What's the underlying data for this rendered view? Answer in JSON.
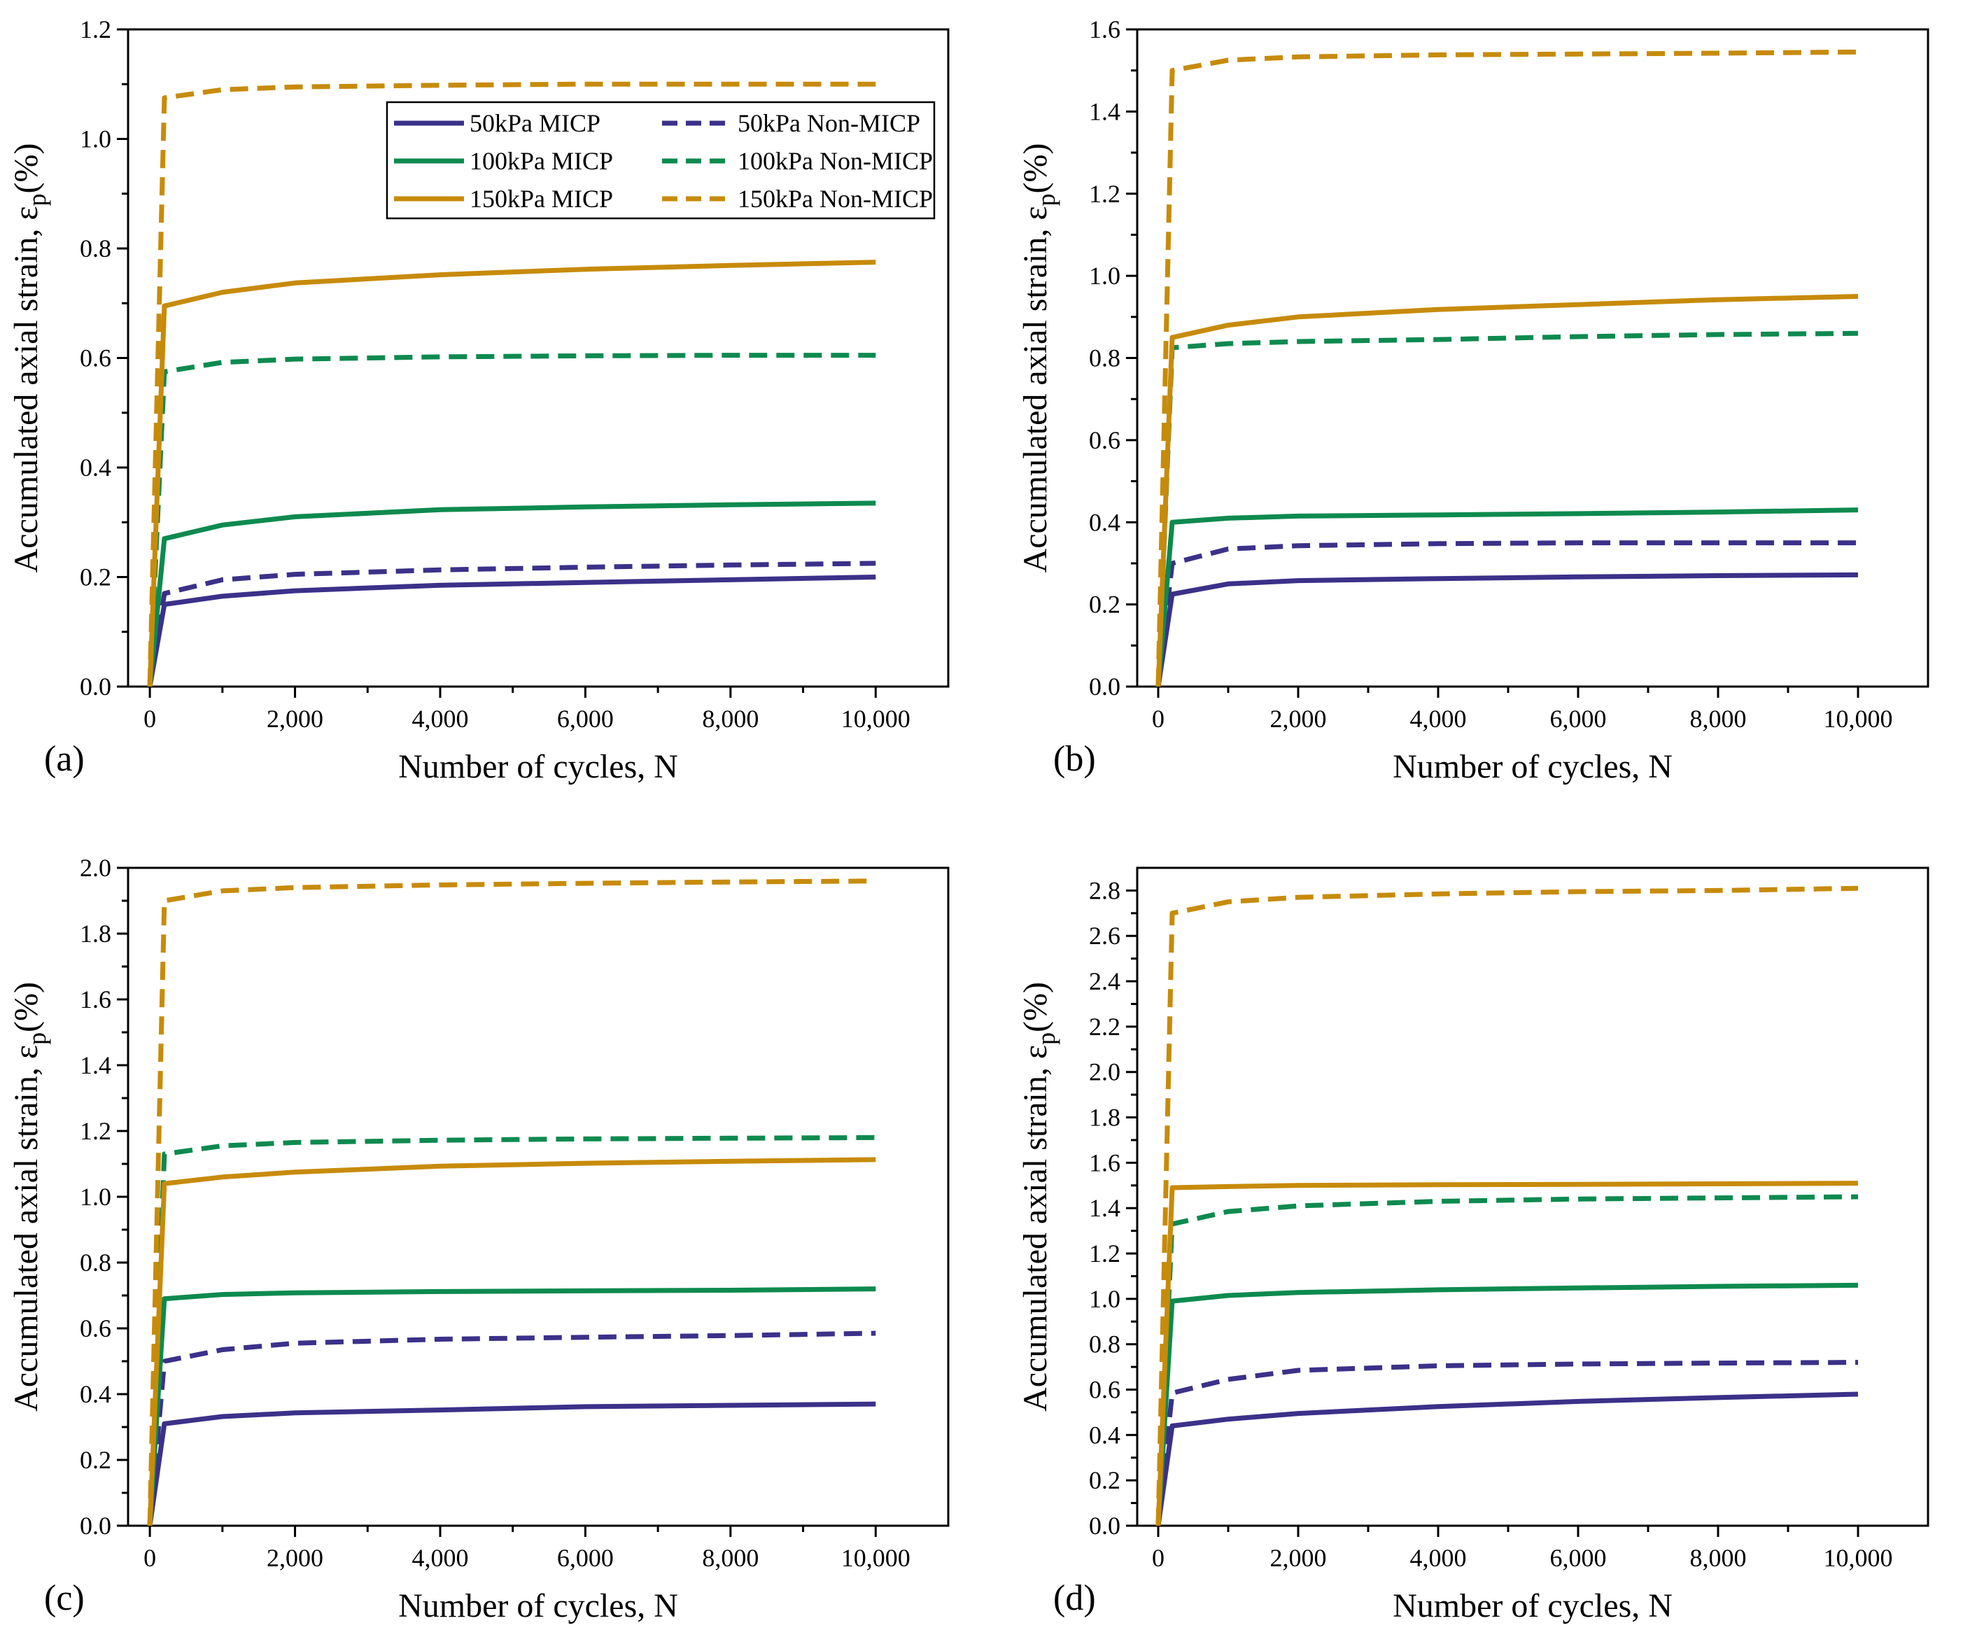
{
  "chart_data": [
    {
      "type": "line",
      "panel_label": "(a)",
      "xlabel": "Number of cycles, N",
      "ylabel": "Accumulated axial strain, ε",
      "ylabel_sub": "p",
      "ylabel_suffix": "(%)",
      "xlim": [
        -300,
        11000
      ],
      "ylim": [
        0,
        1.2
      ],
      "xticks": [
        0,
        2000,
        4000,
        6000,
        8000,
        10000
      ],
      "xtick_labels": [
        "0",
        "2,000",
        "4,000",
        "6,000",
        "8,000",
        "10,000"
      ],
      "yticks": [
        0,
        0.2,
        0.4,
        0.6,
        0.8,
        1.0,
        1.2
      ],
      "ytick_labels": [
        "0.0",
        "0.2",
        "0.4",
        "0.6",
        "0.8",
        "1.0",
        "1.2"
      ],
      "legend": "top-right",
      "series": [
        {
          "name": "50kPa MICP",
          "color": "#3b3189",
          "dash": "solid",
          "x": [
            0,
            200,
            1000,
            2000,
            4000,
            6000,
            8000,
            10000
          ],
          "values": [
            0,
            0.15,
            0.165,
            0.175,
            0.185,
            0.19,
            0.195,
            0.2
          ]
        },
        {
          "name": "50kPa Non-MICP",
          "color": "#3b3189",
          "dash": "dashed",
          "x": [
            0,
            200,
            1000,
            2000,
            4000,
            6000,
            8000,
            10000
          ],
          "values": [
            0,
            0.17,
            0.195,
            0.205,
            0.213,
            0.218,
            0.222,
            0.225
          ]
        },
        {
          "name": "100kPa MICP",
          "color": "#0d8a4f",
          "dash": "solid",
          "x": [
            0,
            200,
            1000,
            2000,
            4000,
            6000,
            8000,
            10000
          ],
          "values": [
            0,
            0.27,
            0.295,
            0.31,
            0.323,
            0.328,
            0.332,
            0.335
          ]
        },
        {
          "name": "100kPa Non-MICP",
          "color": "#0d8a4f",
          "dash": "dashed",
          "x": [
            0,
            200,
            1000,
            2000,
            4000,
            6000,
            8000,
            10000
          ],
          "values": [
            0,
            0.575,
            0.592,
            0.598,
            0.602,
            0.604,
            0.605,
            0.605
          ]
        },
        {
          "name": "150kPa MICP",
          "color": "#c78b0a",
          "dash": "solid",
          "x": [
            0,
            200,
            1000,
            2000,
            4000,
            6000,
            8000,
            10000
          ],
          "values": [
            0,
            0.695,
            0.72,
            0.737,
            0.752,
            0.762,
            0.769,
            0.775
          ]
        },
        {
          "name": "150kPa Non-MICP",
          "color": "#c78b0a",
          "dash": "dashed",
          "x": [
            0,
            200,
            1000,
            2000,
            4000,
            6000,
            8000,
            10000
          ],
          "values": [
            0,
            1.075,
            1.09,
            1.095,
            1.098,
            1.1,
            1.1,
            1.1
          ]
        }
      ]
    },
    {
      "type": "line",
      "panel_label": "(b)",
      "xlabel": "Number of cycles, N",
      "ylabel": "Accumulated axial strain, ε",
      "ylabel_sub": "p",
      "ylabel_suffix": "(%)",
      "xlim": [
        -300,
        11000
      ],
      "ylim": [
        0,
        1.6
      ],
      "xticks": [
        0,
        2000,
        4000,
        6000,
        8000,
        10000
      ],
      "xtick_labels": [
        "0",
        "2,000",
        "4,000",
        "6,000",
        "8,000",
        "10,000"
      ],
      "yticks": [
        0,
        0.2,
        0.4,
        0.6,
        0.8,
        1.0,
        1.2,
        1.4,
        1.6
      ],
      "ytick_labels": [
        "0.0",
        "0.2",
        "0.4",
        "0.6",
        "0.8",
        "1.0",
        "1.2",
        "1.4",
        "1.6"
      ],
      "series": [
        {
          "name": "50kPa MICP",
          "color": "#3b3189",
          "dash": "solid",
          "x": [
            0,
            200,
            1000,
            2000,
            4000,
            6000,
            8000,
            10000
          ],
          "values": [
            0,
            0.225,
            0.25,
            0.258,
            0.263,
            0.267,
            0.27,
            0.272
          ]
        },
        {
          "name": "50kPa Non-MICP",
          "color": "#3b3189",
          "dash": "dashed",
          "x": [
            0,
            200,
            1000,
            2000,
            4000,
            6000,
            8000,
            10000
          ],
          "values": [
            0,
            0.3,
            0.335,
            0.343,
            0.348,
            0.35,
            0.35,
            0.35
          ]
        },
        {
          "name": "100kPa MICP",
          "color": "#0d8a4f",
          "dash": "solid",
          "x": [
            0,
            200,
            1000,
            2000,
            4000,
            6000,
            8000,
            10000
          ],
          "values": [
            0,
            0.4,
            0.41,
            0.415,
            0.418,
            0.421,
            0.425,
            0.43
          ]
        },
        {
          "name": "100kPa Non-MICP",
          "color": "#0d8a4f",
          "dash": "dashed",
          "x": [
            0,
            200,
            1000,
            2000,
            4000,
            6000,
            8000,
            10000
          ],
          "values": [
            0,
            0.825,
            0.835,
            0.84,
            0.845,
            0.852,
            0.857,
            0.86
          ]
        },
        {
          "name": "150kPa MICP",
          "color": "#c78b0a",
          "dash": "solid",
          "x": [
            0,
            200,
            1000,
            2000,
            4000,
            6000,
            8000,
            10000
          ],
          "values": [
            0,
            0.85,
            0.88,
            0.9,
            0.918,
            0.93,
            0.942,
            0.95
          ]
        },
        {
          "name": "150kPa Non-MICP",
          "color": "#c78b0a",
          "dash": "dashed",
          "x": [
            0,
            200,
            1000,
            2000,
            4000,
            6000,
            8000,
            10000
          ],
          "values": [
            0,
            1.5,
            1.525,
            1.533,
            1.538,
            1.54,
            1.542,
            1.545
          ]
        }
      ]
    },
    {
      "type": "line",
      "panel_label": "(c)",
      "xlabel": "Number of cycles, N",
      "ylabel": "Accumulated axial strain, ε",
      "ylabel_sub": "p",
      "ylabel_suffix": "(%)",
      "xlim": [
        -300,
        11000
      ],
      "ylim": [
        0,
        2.0
      ],
      "xticks": [
        0,
        2000,
        4000,
        6000,
        8000,
        10000
      ],
      "xtick_labels": [
        "0",
        "2,000",
        "4,000",
        "6,000",
        "8,000",
        "10,000"
      ],
      "yticks": [
        0,
        0.2,
        0.4,
        0.6,
        0.8,
        1.0,
        1.2,
        1.4,
        1.6,
        1.8,
        2.0
      ],
      "ytick_labels": [
        "0.0",
        "0.2",
        "0.4",
        "0.6",
        "0.8",
        "1.0",
        "1.2",
        "1.4",
        "1.6",
        "1.8",
        "2.0"
      ],
      "series": [
        {
          "name": "50kPa MICP",
          "color": "#3b3189",
          "dash": "solid",
          "x": [
            0,
            200,
            1000,
            2000,
            4000,
            6000,
            8000,
            10000
          ],
          "values": [
            0,
            0.31,
            0.332,
            0.343,
            0.352,
            0.362,
            0.366,
            0.37
          ]
        },
        {
          "name": "50kPa Non-MICP",
          "color": "#3b3189",
          "dash": "dashed",
          "x": [
            0,
            200,
            1000,
            2000,
            4000,
            6000,
            8000,
            10000
          ],
          "values": [
            0,
            0.5,
            0.535,
            0.555,
            0.567,
            0.573,
            0.578,
            0.585
          ]
        },
        {
          "name": "100kPa MICP",
          "color": "#0d8a4f",
          "dash": "solid",
          "x": [
            0,
            200,
            1000,
            2000,
            4000,
            6000,
            8000,
            10000
          ],
          "values": [
            0,
            0.69,
            0.703,
            0.708,
            0.712,
            0.714,
            0.716,
            0.72
          ]
        },
        {
          "name": "100kPa Non-MICP",
          "color": "#0d8a4f",
          "dash": "dashed",
          "x": [
            0,
            200,
            1000,
            2000,
            4000,
            6000,
            8000,
            10000
          ],
          "values": [
            0,
            1.13,
            1.155,
            1.165,
            1.172,
            1.176,
            1.178,
            1.18
          ]
        },
        {
          "name": "150kPa MICP",
          "color": "#c78b0a",
          "dash": "solid",
          "x": [
            0,
            200,
            1000,
            2000,
            4000,
            6000,
            8000,
            10000
          ],
          "values": [
            0,
            1.04,
            1.06,
            1.075,
            1.093,
            1.102,
            1.108,
            1.113
          ]
        },
        {
          "name": "150kPa Non-MICP",
          "color": "#c78b0a",
          "dash": "dashed",
          "x": [
            0,
            200,
            1000,
            2000,
            4000,
            6000,
            8000,
            10000
          ],
          "values": [
            0,
            1.9,
            1.93,
            1.94,
            1.948,
            1.953,
            1.957,
            1.96
          ]
        }
      ]
    },
    {
      "type": "line",
      "panel_label": "(d)",
      "xlabel": "Number of cycles, N",
      "ylabel": "Accumulated axial strain, ε",
      "ylabel_sub": "p",
      "ylabel_suffix": "(%)",
      "xlim": [
        -300,
        11000
      ],
      "ylim": [
        0,
        2.9
      ],
      "xticks": [
        0,
        2000,
        4000,
        6000,
        8000,
        10000
      ],
      "xtick_labels": [
        "0",
        "2,000",
        "4,000",
        "6,000",
        "8,000",
        "10,000"
      ],
      "yticks": [
        0,
        0.2,
        0.4,
        0.6,
        0.8,
        1.0,
        1.2,
        1.4,
        1.6,
        1.8,
        2.0,
        2.2,
        2.4,
        2.6,
        2.8
      ],
      "ytick_labels": [
        "0.0",
        "0.2",
        "0.4",
        "0.6",
        "0.8",
        "1.0",
        "1.2",
        "1.4",
        "1.6",
        "1.8",
        "2.0",
        "2.2",
        "2.4",
        "2.6",
        "2.8"
      ],
      "series": [
        {
          "name": "50kPa MICP",
          "color": "#3b3189",
          "dash": "solid",
          "x": [
            0,
            200,
            1000,
            2000,
            4000,
            6000,
            8000,
            10000
          ],
          "values": [
            0,
            0.44,
            0.47,
            0.495,
            0.525,
            0.548,
            0.565,
            0.58
          ]
        },
        {
          "name": "50kPa Non-MICP",
          "color": "#3b3189",
          "dash": "dashed",
          "x": [
            0,
            200,
            1000,
            2000,
            4000,
            6000,
            8000,
            10000
          ],
          "values": [
            0,
            0.585,
            0.645,
            0.685,
            0.705,
            0.713,
            0.717,
            0.72
          ]
        },
        {
          "name": "100kPa MICP",
          "color": "#0d8a4f",
          "dash": "solid",
          "x": [
            0,
            200,
            1000,
            2000,
            4000,
            6000,
            8000,
            10000
          ],
          "values": [
            0,
            0.99,
            1.015,
            1.028,
            1.04,
            1.048,
            1.055,
            1.06
          ]
        },
        {
          "name": "100kPa Non-MICP",
          "color": "#0d8a4f",
          "dash": "dashed",
          "x": [
            0,
            200,
            1000,
            2000,
            4000,
            6000,
            8000,
            10000
          ],
          "values": [
            0,
            1.33,
            1.385,
            1.41,
            1.43,
            1.44,
            1.445,
            1.45
          ]
        },
        {
          "name": "150kPa MICP",
          "color": "#c78b0a",
          "dash": "solid",
          "x": [
            0,
            200,
            1000,
            2000,
            4000,
            6000,
            8000,
            10000
          ],
          "values": [
            0,
            1.49,
            1.495,
            1.5,
            1.503,
            1.505,
            1.507,
            1.51
          ]
        },
        {
          "name": "150kPa Non-MICP",
          "color": "#c78b0a",
          "dash": "dashed",
          "x": [
            0,
            200,
            1000,
            2000,
            4000,
            6000,
            8000,
            10000
          ],
          "values": [
            0,
            2.7,
            2.75,
            2.77,
            2.785,
            2.795,
            2.8,
            2.81
          ]
        }
      ]
    }
  ]
}
